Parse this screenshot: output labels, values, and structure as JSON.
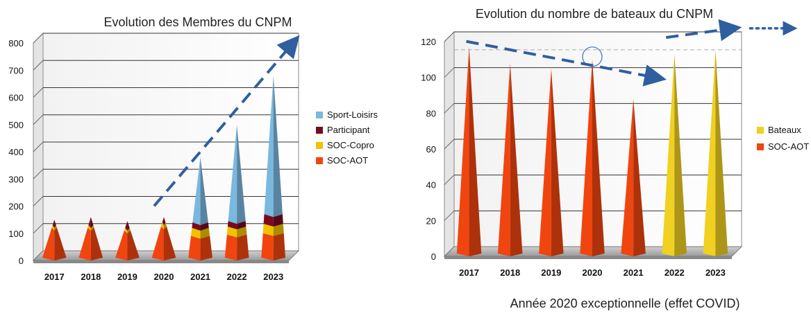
{
  "chart_data": [
    {
      "type": "bar",
      "shape": "pyramid-stacked",
      "title": "Evolution des Membres du CNPM",
      "categories": [
        "2017",
        "2018",
        "2019",
        "2020",
        "2021",
        "2022",
        "2023"
      ],
      "yticks": [
        "0",
        "100",
        "200",
        "300",
        "400",
        "500",
        "600",
        "700",
        "800"
      ],
      "ylim": [
        0,
        800
      ],
      "legend_position": "right",
      "series": [
        {
          "name": "Sport-Loisirs",
          "color": "#7ab8e0",
          "values": [
            0,
            0,
            0,
            0,
            240,
            355,
            510
          ]
        },
        {
          "name": "Participant",
          "color": "#7a0a1e",
          "values": [
            20,
            30,
            25,
            20,
            20,
            20,
            35
          ]
        },
        {
          "name": "SOC-Copro",
          "color": "#f2c200",
          "values": [
            10,
            10,
            10,
            15,
            30,
            30,
            35
          ]
        },
        {
          "name": "SOC-AOT",
          "color": "#f0450f",
          "values": [
            120,
            120,
            110,
            125,
            90,
            95,
            100
          ]
        }
      ],
      "trend_arrow": {
        "from": {
          "category": "2020",
          "value": 180
        },
        "to": {
          "category": "2023",
          "value": 790
        },
        "color": "#2f5f9f"
      }
    },
    {
      "type": "bar",
      "shape": "cone",
      "title": "Evolution du nombre de bateaux du CNPM",
      "categories": [
        "2017",
        "2018",
        "2019",
        "2020",
        "2021",
        "2022",
        "2023"
      ],
      "yticks": [
        "0",
        "20",
        "40",
        "60",
        "80",
        "100",
        "120"
      ],
      "ylim": [
        0,
        120
      ],
      "legend_position": "right",
      "reference_line": 110,
      "highlight_category": "2020",
      "series": [
        {
          "name": "Bateaux",
          "color": "#f0d020",
          "values": [
            0,
            0,
            0,
            0,
            0,
            113,
            115
          ]
        },
        {
          "name": "SOC-AOT",
          "color": "#f0450f",
          "values": [
            117,
            108,
            105,
            110,
            88,
            0,
            0
          ]
        }
      ],
      "trend_arrows": [
        {
          "from": {
            "category": "2017",
            "value": 117
          },
          "to": {
            "category": "2021",
            "value": 88
          }
        },
        {
          "from": {
            "category": "2022",
            "value": 113
          },
          "to": {
            "category": "2023",
            "value": 122
          }
        }
      ],
      "footnote": "Année 2020 exceptionnelle (effet COVID)"
    }
  ]
}
